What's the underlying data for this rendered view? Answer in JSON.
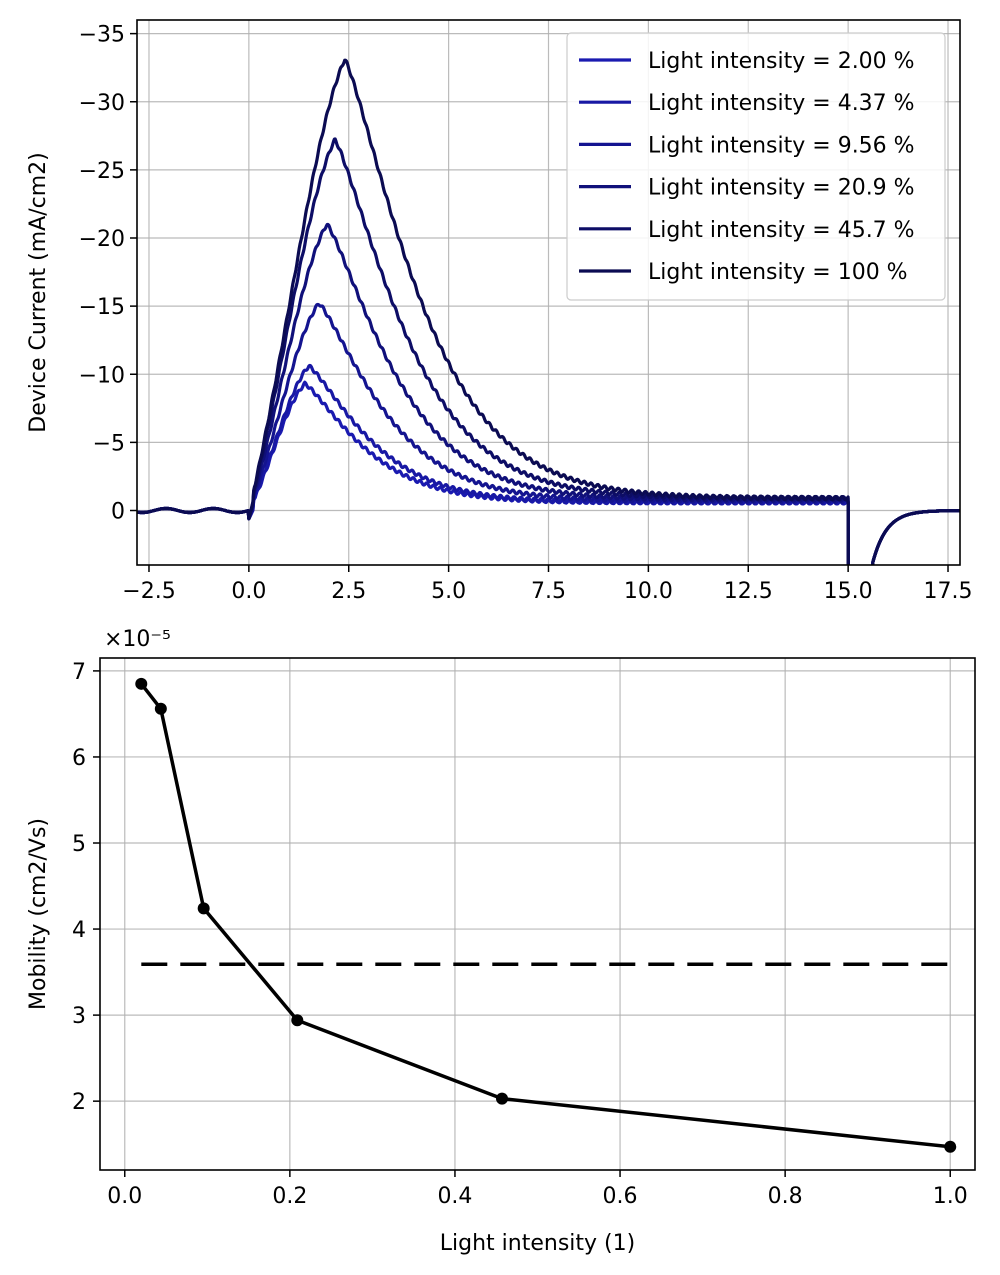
{
  "chart_data": [
    {
      "type": "line",
      "title": "",
      "xlabel": "",
      "ylabel": "Device Current (mA/cm2)",
      "xlim": [
        -2.8,
        17.8
      ],
      "ylim": [
        4,
        -36
      ],
      "y_axis_inverted": true,
      "x_ticks": [
        -2.5,
        0.0,
        2.5,
        5.0,
        7.5,
        10.0,
        12.5,
        15.0,
        17.5
      ],
      "x_tick_labels": [
        "−2.5",
        "0.0",
        "2.5",
        "5.0",
        "7.5",
        "10.0",
        "12.5",
        "15.0",
        "17.5"
      ],
      "y_ticks": [
        -35,
        -30,
        -25,
        -20,
        -15,
        -10,
        -5,
        0
      ],
      "y_tick_labels": [
        "−35",
        "−30",
        "−25",
        "−20",
        "−15",
        "−10",
        "−5",
        "0"
      ],
      "grid": true,
      "legend_position": "top-right",
      "series": [
        {
          "name": "Light intensity = 2.00 %",
          "peak_x": 1.4,
          "peak_y": -9.3,
          "tail_y_at_15": -0.6,
          "color": "#1a1ab0"
        },
        {
          "name": "Light intensity = 4.37 %",
          "peak_x": 1.5,
          "peak_y": -10.6,
          "tail_y_at_15": -0.6,
          "color": "#1818a4"
        },
        {
          "name": "Light intensity = 9.56 %",
          "peak_x": 1.75,
          "peak_y": -15.2,
          "tail_y_at_15": -0.7,
          "color": "#141490"
        },
        {
          "name": "Light intensity = 20.9 %",
          "peak_x": 1.95,
          "peak_y": -21.0,
          "tail_y_at_15": -0.8,
          "color": "#10107a"
        },
        {
          "name": "Light intensity = 45.7 %",
          "peak_x": 2.15,
          "peak_y": -27.2,
          "tail_y_at_15": -0.9,
          "color": "#0d0d66"
        },
        {
          "name": "Light intensity = 100 %",
          "peak_x": 2.4,
          "peak_y": -33.1,
          "tail_y_at_15": -0.9,
          "color": "#0b0b52"
        }
      ]
    },
    {
      "type": "line",
      "title": "",
      "xlabel": "Light intensity (1)",
      "ylabel": "Mobility (cm2/Vs)",
      "xlim": [
        -0.03,
        1.03
      ],
      "ylim": [
        1.2,
        7.15
      ],
      "y_scale_factor": "×10⁻⁵",
      "x_ticks": [
        0.0,
        0.2,
        0.4,
        0.6,
        0.8,
        1.0
      ],
      "x_tick_labels": [
        "0.0",
        "0.2",
        "0.4",
        "0.6",
        "0.8",
        "1.0"
      ],
      "y_ticks": [
        2,
        3,
        4,
        5,
        6,
        7
      ],
      "y_tick_labels": [
        "2",
        "3",
        "4",
        "5",
        "6",
        "7"
      ],
      "grid": true,
      "series": [
        {
          "x": [
            0.02,
            0.0437,
            0.0956,
            0.209,
            0.457,
            1.0
          ],
          "y": [
            6.85,
            6.56,
            4.24,
            2.94,
            2.03,
            1.47
          ],
          "color": "#000000",
          "style": "solid-markers"
        },
        {
          "x": [
            0.02,
            1.0
          ],
          "y": [
            3.59,
            3.59
          ],
          "color": "#000000",
          "style": "dashed"
        }
      ]
    }
  ]
}
